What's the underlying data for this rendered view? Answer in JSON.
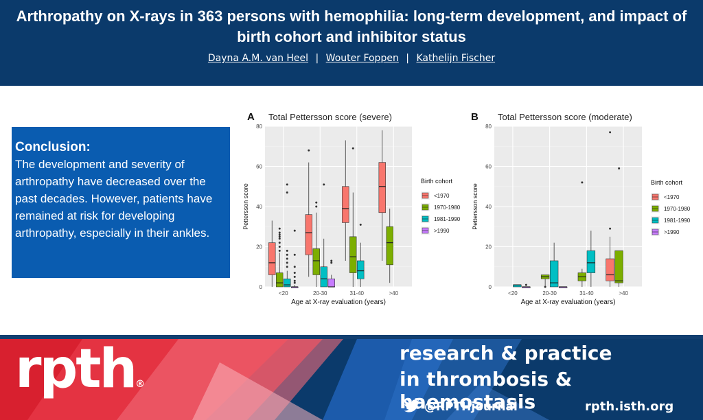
{
  "header": {
    "title": "Arthropathy on X-rays in 363 persons with hemophilia: long-term development, and impact of birth cohort and inhibitor status",
    "authors": [
      "Dayna A.M. van Heel",
      "Wouter Foppen",
      "Kathelijn Fischer"
    ],
    "separator": "|"
  },
  "conclusion": {
    "heading": "Conclusion:",
    "text": "The development and severity of arthropathy have decreased over the past decades. However, patients have remained at risk for developing arthropathy, especially in their ankles."
  },
  "footer": {
    "logo": "rpth",
    "logo_mark": "®",
    "journal_line1": "research & practice",
    "journal_line2": "in thrombosis & haemostasis",
    "twitter": "@RPTHjournal",
    "website": "rpth.isth.org"
  },
  "colors": {
    "header_bg": "#0b3a6b",
    "conclusion_bg": "#0a5cb0",
    "series": [
      "#f8766d",
      "#7cae00",
      "#00bfc4",
      "#c77cff"
    ]
  },
  "chart_data": [
    {
      "type": "box",
      "panel": "A",
      "title": "Total Pettersson score (severe)",
      "xlabel": "Age at X-ray evaluation (years)",
      "ylabel": "Pettersson score",
      "ylim": [
        0,
        80
      ],
      "yticks": [
        0,
        20,
        40,
        60,
        80
      ],
      "categories": [
        "<20",
        "20-30",
        "31-40",
        ">40"
      ],
      "legend": {
        "title": "Birth cohort",
        "position": "right"
      },
      "grid": true,
      "series": [
        {
          "name": "<1970",
          "color": "#f8766d",
          "boxes": [
            {
              "cat": "<20",
              "whisker_low": 0,
              "q1": 6,
              "median": 12,
              "q3": 22,
              "whisker_high": 33,
              "outliers": []
            },
            {
              "cat": "20-30",
              "whisker_low": 5,
              "q1": 16,
              "median": 27,
              "q3": 36,
              "whisker_high": 62,
              "outliers": [
                68
              ]
            },
            {
              "cat": "31-40",
              "whisker_low": 13,
              "q1": 32,
              "median": 39,
              "q3": 50,
              "whisker_high": 73,
              "outliers": []
            },
            {
              "cat": ">40",
              "whisker_low": 13,
              "q1": 37,
              "median": 50,
              "q3": 62,
              "whisker_high": 78,
              "outliers": []
            }
          ]
        },
        {
          "name": "1970-1980",
          "color": "#7cae00",
          "boxes": [
            {
              "cat": "<20",
              "whisker_low": 0,
              "q1": 0,
              "median": 2,
              "q3": 7,
              "whisker_high": 17,
              "outliers": [
                18,
                20,
                22,
                24,
                25,
                26,
                27,
                29
              ]
            },
            {
              "cat": "20-30",
              "whisker_low": 0,
              "q1": 6,
              "median": 13,
              "q3": 19,
              "whisker_high": 37,
              "outliers": [
                40,
                42
              ]
            },
            {
              "cat": "31-40",
              "whisker_low": 0,
              "q1": 7,
              "median": 15,
              "q3": 25,
              "whisker_high": 47,
              "outliers": [
                69
              ]
            },
            {
              "cat": ">40",
              "whisker_low": 2,
              "q1": 11,
              "median": 22,
              "q3": 30,
              "whisker_high": 39,
              "outliers": []
            }
          ]
        },
        {
          "name": "1981-1990",
          "color": "#00bfc4",
          "boxes": [
            {
              "cat": "<20",
              "whisker_low": 0,
              "q1": 0,
              "median": 1,
              "q3": 4,
              "whisker_high": 8,
              "outliers": [
                10,
                12,
                14,
                16,
                18,
                47,
                51
              ]
            },
            {
              "cat": "20-30",
              "whisker_low": 0,
              "q1": 0,
              "median": 4,
              "q3": 10,
              "whisker_high": 24,
              "outliers": [
                51
              ]
            },
            {
              "cat": "31-40",
              "whisker_low": 0,
              "q1": 4,
              "median": 8,
              "q3": 13,
              "whisker_high": 22,
              "outliers": [
                31
              ]
            }
          ]
        },
        {
          "name": ">1990",
          "color": "#c77cff",
          "boxes": [
            {
              "cat": "<20",
              "whisker_low": 0,
              "q1": 0,
              "median": 0,
              "q3": 0,
              "whisker_high": 1,
              "outliers": [
                2,
                3,
                5,
                7,
                10,
                16,
                28
              ]
            },
            {
              "cat": "20-30",
              "whisker_low": 0,
              "q1": 0,
              "median": 0,
              "q3": 4,
              "whisker_high": 6,
              "outliers": [
                12,
                13
              ]
            }
          ]
        }
      ]
    },
    {
      "type": "box",
      "panel": "B",
      "title": "Total Pettersson score (moderate)",
      "xlabel": "Age at X-ray evaluation (years)",
      "ylabel": "Pettersson score",
      "ylim": [
        0,
        80
      ],
      "yticks": [
        0,
        20,
        40,
        60,
        80
      ],
      "categories": [
        "<20",
        "20-30",
        "31-40",
        ">40"
      ],
      "legend": {
        "title": "Birth cohort",
        "position": "right"
      },
      "grid": true,
      "series": [
        {
          "name": "<1970",
          "color": "#f8766d",
          "boxes": [
            {
              "cat": ">40",
              "whisker_low": 0,
              "q1": 3,
              "median": 6,
              "q3": 14,
              "whisker_high": 25,
              "outliers": [
                29,
                77
              ]
            }
          ]
        },
        {
          "name": "1970-1980",
          "color": "#7cae00",
          "boxes": [
            {
              "cat": "20-30",
              "whisker_low": 0,
              "q1": 4,
              "median": 5,
              "q3": 6,
              "whisker_high": 6,
              "outliers": [
                0
              ]
            },
            {
              "cat": "31-40",
              "whisker_low": 0,
              "q1": 3,
              "median": 5,
              "q3": 7,
              "whisker_high": 9,
              "outliers": [
                52
              ]
            },
            {
              "cat": ">40",
              "whisker_low": 0,
              "q1": 2,
              "median": 3,
              "q3": 18,
              "whisker_high": 18,
              "outliers": [
                59
              ]
            }
          ]
        },
        {
          "name": "1981-1990",
          "color": "#00bfc4",
          "boxes": [
            {
              "cat": "<20",
              "whisker_low": 0,
              "q1": 0,
              "median": 1,
              "q3": 1,
              "whisker_high": 1,
              "outliers": []
            },
            {
              "cat": "20-30",
              "whisker_low": 0,
              "q1": 0,
              "median": 2,
              "q3": 13,
              "whisker_high": 22,
              "outliers": []
            },
            {
              "cat": "31-40",
              "whisker_low": 0,
              "q1": 7,
              "median": 12,
              "q3": 18,
              "whisker_high": 28,
              "outliers": []
            }
          ]
        },
        {
          "name": ">1990",
          "color": "#c77cff",
          "boxes": [
            {
              "cat": "<20",
              "whisker_low": 0,
              "q1": 0,
              "median": 0,
              "q3": 0,
              "whisker_high": 0,
              "outliers": [
                1
              ]
            },
            {
              "cat": "20-30",
              "whisker_low": 0,
              "q1": 0,
              "median": 0,
              "q3": 0,
              "whisker_high": 0,
              "outliers": []
            }
          ]
        }
      ]
    }
  ]
}
